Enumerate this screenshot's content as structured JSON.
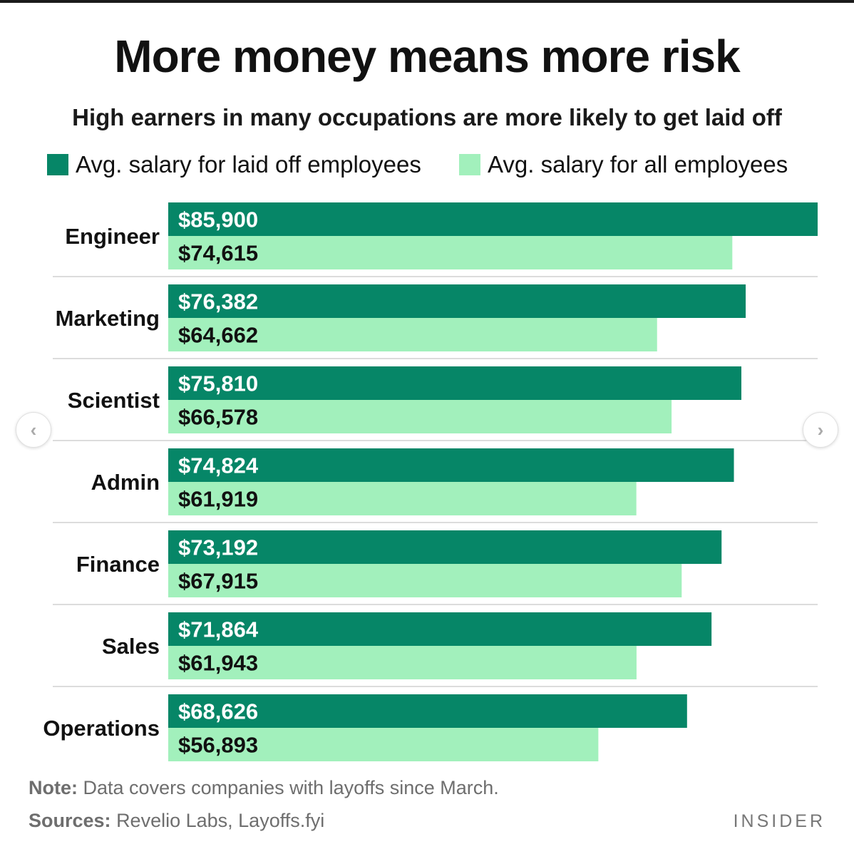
{
  "title": "More money means more risk",
  "subtitle": "High earners in many occupations are more likely to get laid off",
  "legend": {
    "laid_off": "Avg. salary for laid off employees",
    "all": "Avg. salary for all employees"
  },
  "colors": {
    "laid_off": "#068667",
    "all": "#a2f0bc",
    "laid_off_text": "#ffffff",
    "all_text": "#111111"
  },
  "chart_data": {
    "type": "bar",
    "orientation": "horizontal",
    "categories": [
      "Engineer",
      "Marketing",
      "Scientist",
      "Admin",
      "Finance",
      "Sales",
      "Operations"
    ],
    "series": [
      {
        "name": "Avg. salary for laid off employees",
        "values": [
          85900,
          76382,
          75810,
          74824,
          73192,
          71864,
          68626
        ],
        "labels": [
          "$85,900",
          "$76,382",
          "$75,810",
          "$74,824",
          "$73,192",
          "$71,864",
          "$68,626"
        ]
      },
      {
        "name": "Avg. salary for all employees",
        "values": [
          74615,
          64662,
          66578,
          61919,
          67915,
          61943,
          56893
        ],
        "labels": [
          "$74,615",
          "$64,662",
          "$66,578",
          "$61,919",
          "$67,915",
          "$61,943",
          "$56,893"
        ]
      }
    ],
    "xlim": [
      0,
      85900
    ],
    "legend_position": "top"
  },
  "footer": {
    "note_label": "Note:",
    "note_text": "Data covers companies with layoffs since March.",
    "sources_label": "Sources:",
    "sources_text": "Revelio Labs, Layoffs.fyi",
    "brand": "INSIDER"
  },
  "nav": {
    "prev": "‹",
    "next": "›"
  }
}
